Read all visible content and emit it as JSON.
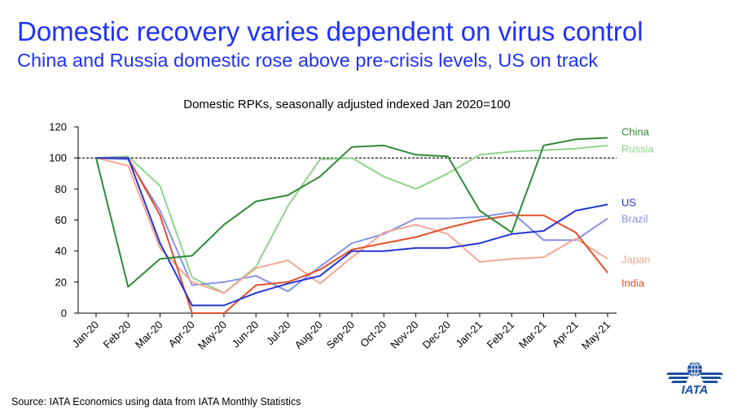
{
  "header": {
    "title": "Domestic recovery varies dependent on virus control",
    "subtitle": "China and Russia domestic rose above pre-crisis levels, US on track"
  },
  "footer": {
    "source": "Source: IATA Economics using data from IATA Monthly Statistics",
    "logo_text": "IATA"
  },
  "colors": {
    "accent": "#1e32fa",
    "logo": "#1a4fa0"
  },
  "chart_data": {
    "type": "line",
    "title": "Domestic RPKs, seasonally adjusted indexed Jan 2020=100",
    "xlabel": "",
    "ylabel": "",
    "ylim": [
      0,
      120
    ],
    "yticks": [
      0,
      20,
      40,
      60,
      80,
      100,
      120
    ],
    "grid": false,
    "reference_line": 100,
    "legend": "right-end labels",
    "categories": [
      "Jan-20",
      "Feb-20",
      "Mar-20",
      "Apr-20",
      "May-20",
      "Jun-20",
      "Jul-20",
      "Aug-20",
      "Sep-20",
      "Oct-20",
      "Nov-20",
      "Dec-20",
      "Jan-21",
      "Feb-21",
      "Mar-21",
      "Apr-21",
      "May-21"
    ],
    "series": [
      {
        "name": "China",
        "color": "#2f8a36",
        "values": [
          100,
          17,
          35,
          37,
          57,
          72,
          76,
          88,
          107,
          108,
          102,
          101,
          66,
          52,
          108,
          112,
          113
        ]
      },
      {
        "name": "Russia",
        "color": "#8fd48a",
        "values": [
          100,
          101,
          82,
          23,
          13,
          30,
          69,
          99,
          100,
          88,
          80,
          90,
          102,
          104,
          105,
          106,
          108
        ]
      },
      {
        "name": "US",
        "color": "#2435d6",
        "values": [
          100,
          100,
          45,
          5,
          5,
          13,
          19,
          24,
          40,
          40,
          42,
          42,
          45,
          51,
          53,
          66,
          70
        ]
      },
      {
        "name": "Brazil",
        "color": "#8592e6",
        "values": [
          100,
          99,
          66,
          18,
          20,
          24,
          14,
          30,
          45,
          51,
          61,
          61,
          62,
          65,
          47,
          47,
          61
        ]
      },
      {
        "name": "Japan",
        "color": "#f5a692",
        "values": [
          100,
          95,
          42,
          20,
          13,
          29,
          34,
          19,
          36,
          52,
          57,
          51,
          33,
          35,
          36,
          48,
          35
        ]
      },
      {
        "name": "India",
        "color": "#e2502c",
        "values": [
          100,
          100,
          63,
          0,
          0,
          18,
          20,
          28,
          41,
          45,
          49,
          55,
          60,
          63,
          63,
          52,
          26
        ]
      }
    ]
  }
}
